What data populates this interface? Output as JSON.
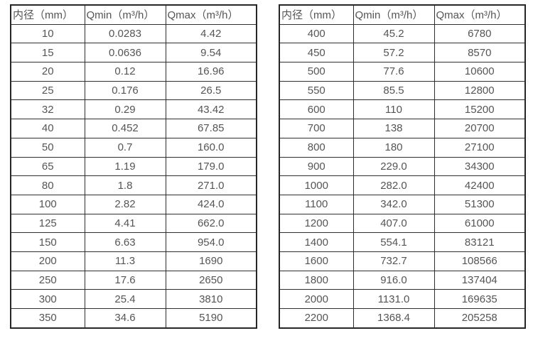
{
  "page": {
    "background_color": "#ffffff",
    "border_color": "#2e2e2e",
    "text_color": "#555555"
  },
  "tables": [
    {
      "name": "small-diameter-flow-table",
      "headers": [
        "内径（mm）",
        "Qmin（m³/h）",
        "Qmax（m³/h）"
      ],
      "rows": [
        [
          "10",
          "0.0283",
          "4.42"
        ],
        [
          "15",
          "0.0636",
          "9.54"
        ],
        [
          "20",
          "0.12",
          "16.96"
        ],
        [
          "25",
          "0.176",
          "26.5"
        ],
        [
          "32",
          "0.29",
          "43.42"
        ],
        [
          "40",
          "0.452",
          "67.85"
        ],
        [
          "50",
          "0.7",
          "160.0"
        ],
        [
          "65",
          "1.19",
          "179.0"
        ],
        [
          "80",
          "1.8",
          "271.0"
        ],
        [
          "100",
          "2.82",
          "424.0"
        ],
        [
          "125",
          "4.41",
          "662.0"
        ],
        [
          "150",
          "6.63",
          "954.0"
        ],
        [
          "200",
          "11.3",
          "1690"
        ],
        [
          "250",
          "17.6",
          "2650"
        ],
        [
          "300",
          "25.4",
          "3810"
        ],
        [
          "350",
          "34.6",
          "5190"
        ]
      ]
    },
    {
      "name": "large-diameter-flow-table",
      "headers": [
        "内径（mm）",
        "Qmin（m³/h）",
        "Qmax（m³/h）"
      ],
      "rows": [
        [
          "400",
          "45.2",
          "6780"
        ],
        [
          "450",
          "57.2",
          "8570"
        ],
        [
          "500",
          "77.6",
          "10600"
        ],
        [
          "550",
          "85.5",
          "12800"
        ],
        [
          "600",
          "110",
          "15200"
        ],
        [
          "700",
          "138",
          "20700"
        ],
        [
          "800",
          "180",
          "27100"
        ],
        [
          "900",
          "229.0",
          "34300"
        ],
        [
          "1000",
          "282.0",
          "42400"
        ],
        [
          "1100",
          "342.0",
          "51300"
        ],
        [
          "1200",
          "407.0",
          "61000"
        ],
        [
          "1400",
          "554.1",
          "83121"
        ],
        [
          "1600",
          "732.7",
          "108566"
        ],
        [
          "1800",
          "916.0",
          "137404"
        ],
        [
          "2000",
          "1131.0",
          "169635"
        ],
        [
          "2200",
          "1368.4",
          "205258"
        ]
      ]
    }
  ]
}
